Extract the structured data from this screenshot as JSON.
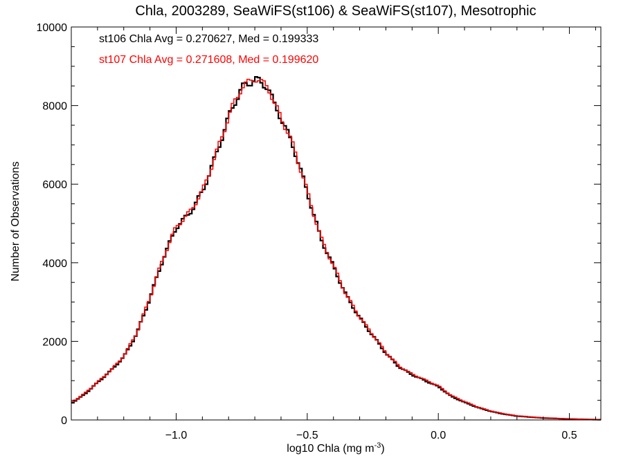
{
  "chart_data": {
    "type": "line",
    "step": true,
    "title": "Chla, 2003289, SeaWiFS(st106) & SeaWiFS(st107), Mesotrophic",
    "xlabel_main": "log10 Chla (mg m",
    "xlabel_sup": "-3",
    "xlabel_end": ")",
    "ylabel": "Number of Observations",
    "xlim": [
      -1.4,
      0.62
    ],
    "ylim": [
      0,
      10000
    ],
    "x_ticks": [
      -1.0,
      -0.5,
      0.0,
      0.5
    ],
    "x_tick_labels": [
      "−1.0",
      "−0.5",
      "0.0",
      "0.5"
    ],
    "y_ticks": [
      0,
      2000,
      4000,
      6000,
      8000,
      10000
    ],
    "y_tick_labels": [
      "0",
      "2000",
      "4000",
      "6000",
      "8000",
      "10000"
    ],
    "annotations": [
      {
        "text": "st106 Chla Avg = 0.270627, Med = 0.199333",
        "color": "#000000"
      },
      {
        "text": "st107 Chla Avg = 0.271608, Med = 0.199620",
        "color": "#ff0000"
      }
    ],
    "x": [
      -1.4,
      -1.35,
      -1.3,
      -1.25,
      -1.2,
      -1.15,
      -1.1,
      -1.05,
      -1.0,
      -0.95,
      -0.9,
      -0.85,
      -0.8,
      -0.775,
      -0.75,
      -0.725,
      -0.7,
      -0.675,
      -0.65,
      -0.625,
      -0.6,
      -0.55,
      -0.5,
      -0.45,
      -0.4,
      -0.35,
      -0.3,
      -0.25,
      -0.2,
      -0.15,
      -0.1,
      -0.05,
      0.0,
      0.05,
      0.1,
      0.15,
      0.2,
      0.25,
      0.3,
      0.4,
      0.5,
      0.62
    ],
    "series": [
      {
        "name": "st106",
        "color": "#000000",
        "values": [
          420,
          650,
          950,
          1250,
          1600,
          2200,
          3100,
          4100,
          4900,
          5250,
          5800,
          6700,
          7700,
          8100,
          8450,
          8550,
          8700,
          8550,
          8500,
          8000,
          7700,
          6900,
          5800,
          4650,
          3900,
          3150,
          2600,
          2150,
          1700,
          1350,
          1150,
          1000,
          850,
          600,
          450,
          320,
          220,
          150,
          100,
          50,
          25,
          5
        ]
      },
      {
        "name": "st107",
        "color": "#ff0000",
        "values": [
          440,
          670,
          960,
          1260,
          1620,
          2220,
          3120,
          4120,
          4920,
          5270,
          5820,
          6720,
          7720,
          8120,
          8470,
          8570,
          8720,
          8570,
          8520,
          8020,
          7720,
          6920,
          5820,
          4670,
          3920,
          3170,
          2620,
          2170,
          1720,
          1370,
          1170,
          1020,
          870,
          620,
          470,
          330,
          230,
          160,
          105,
          55,
          28,
          6
        ]
      }
    ]
  }
}
